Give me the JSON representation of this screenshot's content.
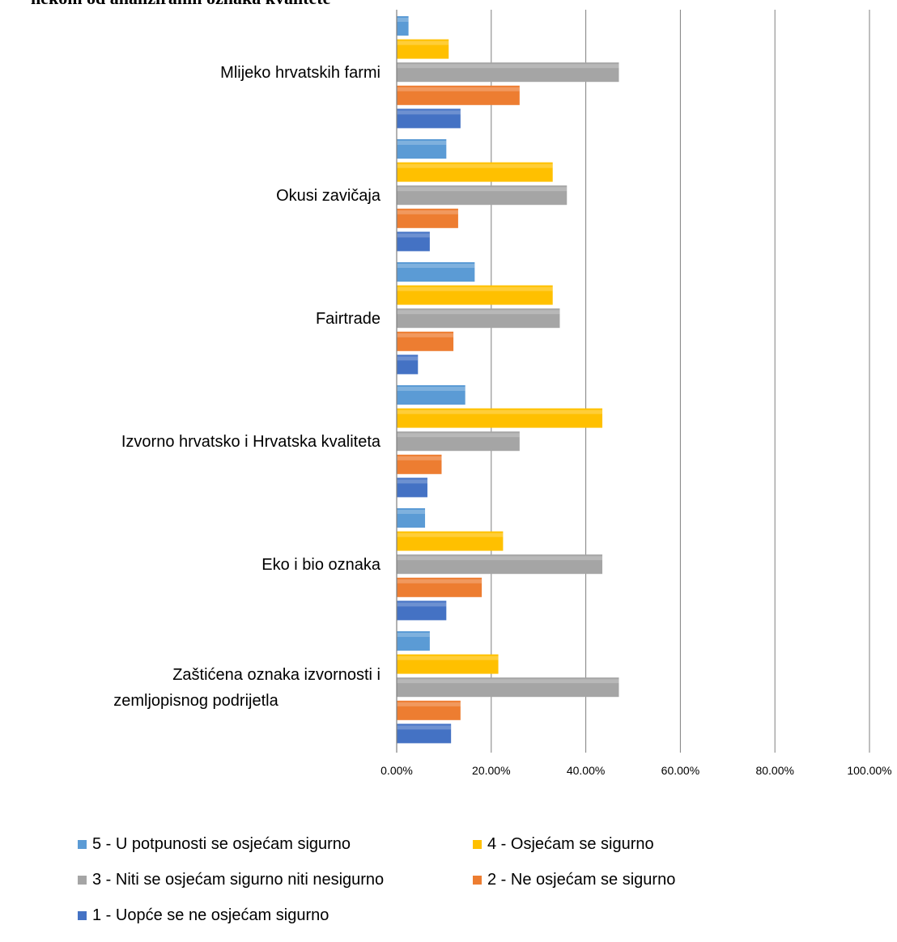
{
  "title_fragment": "nekom od analiziranih oznaka kvalitete",
  "colors": {
    "s5": "#5b9bd5",
    "s4": "#ffc000",
    "s3": "#a5a5a5",
    "s2": "#ed7d31",
    "s1": "#4472c4",
    "grid": "#7f7f7f"
  },
  "chart_data": {
    "type": "bar",
    "orientation": "horizontal",
    "categories": [
      "Mlijeko hrvatskih farmi",
      "Okusi zavičaja",
      "Fairtrade",
      "Izvorno hrvatsko i Hrvatska kvaliteta",
      "Eko i bio oznaka",
      "Zaštićena oznaka izvornosti i zemljopisnog podrijetla"
    ],
    "series": [
      {
        "name": "5 - U potpunosti se osjećam sigurno",
        "color": "#5b9bd5",
        "values": [
          2.5,
          10.5,
          16.5,
          14.5,
          6.0,
          7.0
        ]
      },
      {
        "name": "4 - Osjećam se sigurno",
        "color": "#ffc000",
        "values": [
          11.0,
          33.0,
          33.0,
          43.5,
          22.5,
          21.5
        ]
      },
      {
        "name": "3 - Niti se osjećam sigurno niti nesigurno",
        "color": "#a5a5a5",
        "values": [
          47.0,
          36.0,
          34.5,
          26.0,
          43.5,
          47.0
        ]
      },
      {
        "name": "2 - Ne osjećam se sigurno",
        "color": "#ed7d31",
        "values": [
          26.0,
          13.0,
          12.0,
          9.5,
          18.0,
          13.5
        ]
      },
      {
        "name": "1 - Uopće se ne osjećam sigurno",
        "color": "#4472c4",
        "values": [
          13.5,
          7.0,
          4.5,
          6.5,
          10.5,
          11.5
        ]
      }
    ],
    "xlim": [
      0,
      100
    ],
    "xticks": [
      "0.00%",
      "20.00%",
      "40.00%",
      "60.00%",
      "80.00%",
      "100.00%"
    ],
    "grid": "vertical",
    "legend_position": "bottom"
  }
}
